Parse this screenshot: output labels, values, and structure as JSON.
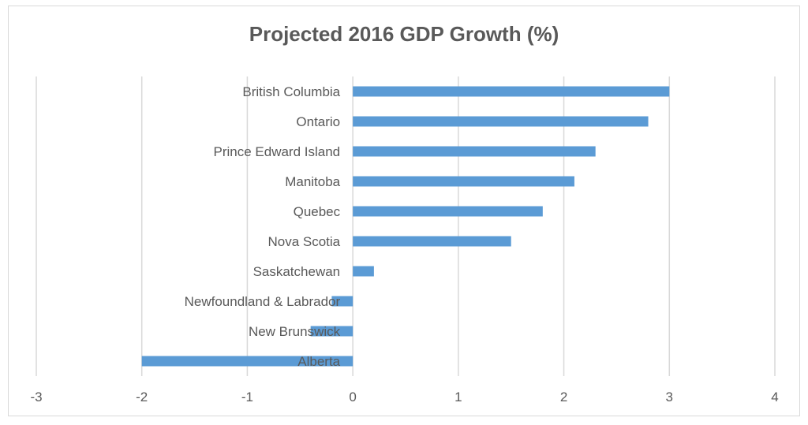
{
  "chart_data": {
    "type": "bar",
    "orientation": "horizontal",
    "title": "Projected 2016 GDP Growth (%)",
    "categories": [
      "British Columbia",
      "Ontario",
      "Prince Edward Island",
      "Manitoba",
      "Quebec",
      "Nova Scotia",
      "Saskatchewan",
      "Newfoundland & Labrador",
      "New Brunswick",
      "Alberta"
    ],
    "values": [
      3.0,
      2.8,
      2.3,
      2.1,
      1.8,
      1.5,
      0.2,
      -0.2,
      -0.4,
      -2.0
    ],
    "xlim": [
      -3,
      4
    ],
    "xticks": [
      "-3",
      "-2",
      "-1",
      "0",
      "1",
      "2",
      "3",
      "4"
    ],
    "grid": true,
    "bar_color": "#5b9bd5",
    "grid_color": "#d9d9d9",
    "text_color": "#595959"
  }
}
